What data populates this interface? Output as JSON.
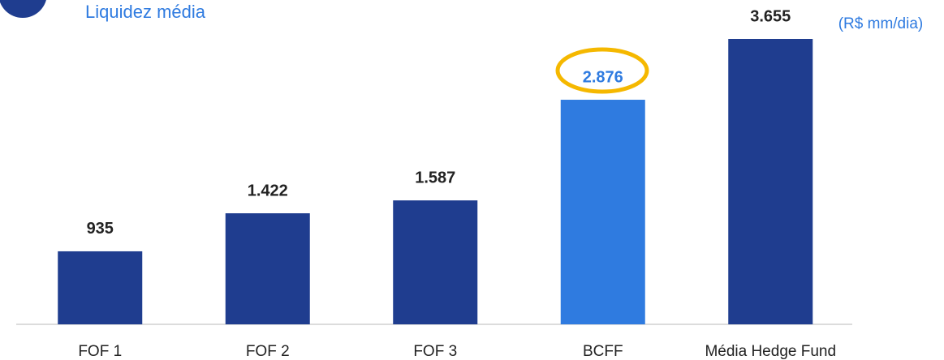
{
  "chart_data": {
    "type": "bar",
    "title": "Liquidez média",
    "annotation": "(R$ mm/dia)",
    "categories": [
      "FOF 1",
      "FOF 2",
      "FOF 3",
      "BCFF",
      "Média Hedge Fund"
    ],
    "values": [
      935,
      1422,
      1587,
      2876,
      3655
    ],
    "value_labels": [
      "935",
      "1.422",
      "1.587",
      "2.876",
      "3.655"
    ],
    "colors": [
      "#1f3d8f",
      "#1f3d8f",
      "#1f3d8f",
      "#2f7be0",
      "#1f3d8f"
    ],
    "value_label_colors": [
      "#222222",
      "#222222",
      "#222222",
      "#2f7be0",
      "#222222"
    ]
  }
}
